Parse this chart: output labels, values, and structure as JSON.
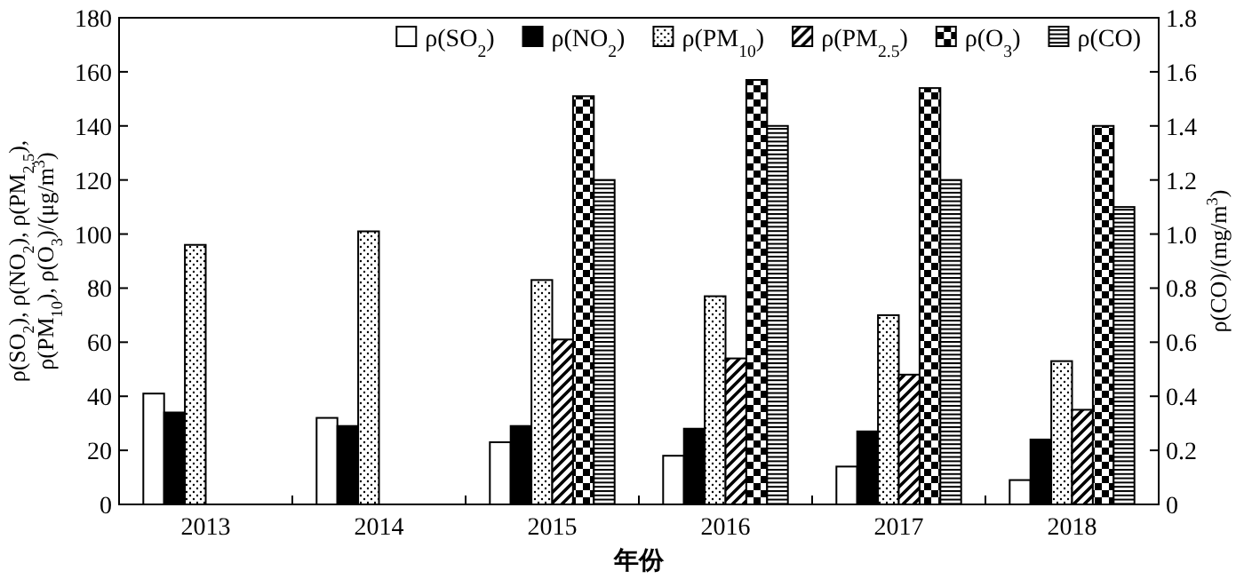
{
  "chart_data": {
    "type": "bar",
    "xlabel": "年份",
    "ylabel": "ρ(SO$_{2}$), ρ(NO$_{2}$), ρ(PM$_{2.5}$),\nρ(PM$_{10}$), ρ(O$_{3}$)/(μg/m$^{3}$)",
    "y2label": "ρ(CO)/(mg/m$^{3}$)",
    "categories": [
      "2013",
      "2014",
      "2015",
      "2016",
      "2017",
      "2018"
    ],
    "series": [
      {
        "name": "ρ(SO$_{2}$)",
        "color": "#ffffff",
        "values": [
          41,
          32,
          23,
          18,
          14,
          9
        ]
      },
      {
        "name": "ρ(NO$_{2}$)",
        "color": "#000000",
        "values": [
          34,
          29,
          29,
          28,
          27,
          24
        ]
      },
      {
        "name": "ρ(PM$_{10}$)",
        "color": "#000000",
        "values": [
          96,
          101,
          83,
          77,
          70,
          53
        ]
      },
      {
        "name": "ρ(PM$_{2.5}$)",
        "color": "#000000",
        "values": [
          null,
          null,
          61,
          54,
          48,
          35
        ]
      },
      {
        "name": "ρ(O$_{3}$)",
        "color": "#000000",
        "values": [
          null,
          null,
          151,
          157,
          154,
          140
        ]
      },
      {
        "name": "ρ(CO)",
        "color": "#000000",
        "axis": "y2",
        "values": [
          null,
          null,
          1.2,
          1.4,
          1.2,
          1.1
        ]
      }
    ],
    "ylim": [
      0,
      180
    ],
    "yticks": [
      0,
      20,
      40,
      60,
      80,
      100,
      120,
      140,
      160,
      180
    ],
    "y2lim": [
      0,
      1.8
    ],
    "y2ticks": [
      {
        "value": 0,
        "label": "0"
      },
      0.2,
      0.4,
      0.6,
      0.8,
      {
        "value": 1.0,
        "label": "1.0"
      },
      1.2,
      1.4,
      1.6,
      1.8
    ],
    "grid": false,
    "legend": "top right"
  }
}
